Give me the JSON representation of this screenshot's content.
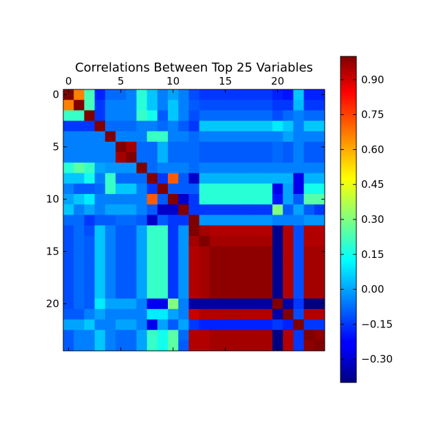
{
  "chart_data": {
    "type": "heatmap",
    "title": "Correlations Between Top 25 Variables",
    "rows": 25,
    "cols": 25,
    "x_ticks": [
      0,
      5,
      10,
      15,
      20
    ],
    "y_ticks": [
      0,
      5,
      10,
      15,
      20
    ],
    "x_tick_labels": [
      "0",
      "5",
      "10",
      "15",
      "20"
    ],
    "y_tick_labels": [
      "0",
      "5",
      "10",
      "15",
      "20"
    ],
    "colormap": "jet",
    "vmin": -0.4,
    "vmax": 1.0,
    "colorbar_ticks": [
      0.9,
      0.75,
      0.6,
      0.45,
      0.3,
      0.15,
      0.0,
      -0.15,
      -0.3
    ],
    "colorbar_tick_labels": [
      "0.90",
      "0.75",
      "0.60",
      "0.45",
      "0.30",
      "0.15",
      "0.00",
      "−0.15",
      "−0.30"
    ],
    "matrix": [
      [
        1.0,
        0.65,
        0.22,
        -0.18,
        -0.08,
        -0.08,
        -0.05,
        0.18,
        0.05,
        -0.05,
        0.0,
        -0.05,
        -0.12,
        -0.15,
        -0.15,
        -0.15,
        -0.15,
        -0.15,
        -0.15,
        -0.15,
        -0.18,
        -0.2,
        0.05,
        -0.18,
        -0.18
      ],
      [
        0.65,
        1.0,
        0.22,
        -0.15,
        -0.05,
        -0.05,
        -0.05,
        0.18,
        0.05,
        -0.05,
        0.05,
        -0.05,
        -0.1,
        -0.12,
        -0.12,
        -0.12,
        -0.12,
        -0.12,
        -0.12,
        -0.12,
        -0.15,
        -0.15,
        0.03,
        -0.15,
        -0.15
      ],
      [
        0.2,
        0.2,
        1.0,
        -0.15,
        -0.05,
        -0.05,
        -0.05,
        0.2,
        0.15,
        -0.1,
        0.05,
        -0.05,
        -0.12,
        -0.08,
        -0.08,
        -0.08,
        -0.08,
        -0.08,
        -0.08,
        -0.08,
        -0.12,
        -0.08,
        -0.05,
        -0.08,
        -0.08
      ],
      [
        -0.15,
        -0.15,
        -0.15,
        1.0,
        -0.08,
        -0.08,
        -0.08,
        -0.05,
        -0.05,
        -0.08,
        -0.05,
        -0.1,
        -0.15,
        0.05,
        0.05,
        0.05,
        0.05,
        0.05,
        0.05,
        0.05,
        0.1,
        0.05,
        -0.05,
        0.05,
        0.05
      ],
      [
        -0.05,
        -0.05,
        -0.05,
        -0.05,
        1.0,
        -0.05,
        -0.05,
        -0.05,
        0.2,
        0.2,
        -0.05,
        -0.05,
        -0.08,
        -0.05,
        -0.05,
        -0.05,
        -0.05,
        -0.05,
        -0.05,
        -0.05,
        -0.05,
        0.0,
        -0.05,
        -0.05,
        -0.05
      ],
      [
        -0.05,
        -0.05,
        -0.05,
        -0.05,
        -0.05,
        1.0,
        0.95,
        -0.08,
        -0.08,
        0.02,
        -0.08,
        -0.08,
        -0.08,
        -0.1,
        -0.1,
        -0.1,
        -0.1,
        -0.1,
        -0.1,
        -0.1,
        -0.08,
        -0.1,
        -0.05,
        -0.1,
        -0.1
      ],
      [
        -0.05,
        -0.05,
        -0.05,
        -0.05,
        -0.05,
        0.95,
        1.0,
        -0.08,
        -0.08,
        0.02,
        -0.08,
        -0.08,
        -0.08,
        -0.1,
        -0.1,
        -0.1,
        -0.1,
        -0.1,
        -0.1,
        -0.1,
        -0.08,
        -0.1,
        -0.05,
        -0.1,
        -0.1
      ],
      [
        0.18,
        0.25,
        0.2,
        0.0,
        -0.02,
        -0.02,
        -0.02,
        1.0,
        -0.08,
        -0.05,
        -0.05,
        -0.05,
        -0.08,
        -0.05,
        -0.05,
        -0.05,
        -0.05,
        -0.05,
        -0.05,
        -0.05,
        -0.05,
        -0.05,
        -0.05,
        -0.05,
        -0.05
      ],
      [
        0.05,
        0.05,
        0.15,
        -0.05,
        0.2,
        -0.08,
        -0.08,
        -0.08,
        1.0,
        -0.15,
        0.7,
        -0.1,
        -0.3,
        0.02,
        0.02,
        0.02,
        0.02,
        0.02,
        0.02,
        0.02,
        0.02,
        0.02,
        -0.25,
        0.02,
        0.02
      ],
      [
        -0.05,
        -0.1,
        -0.1,
        -0.08,
        0.2,
        0.05,
        0.05,
        -0.05,
        -0.15,
        1.0,
        -0.1,
        -0.1,
        -0.1,
        0.18,
        0.18,
        0.18,
        0.18,
        0.18,
        0.18,
        0.18,
        -0.25,
        0.0,
        -0.25,
        0.15,
        0.15
      ],
      [
        0.0,
        0.05,
        0.1,
        -0.05,
        -0.05,
        -0.05,
        -0.05,
        -0.05,
        0.7,
        -0.1,
        1.0,
        -0.3,
        -0.15,
        0.18,
        0.18,
        0.18,
        0.18,
        0.18,
        0.18,
        0.18,
        -0.2,
        0.0,
        -0.1,
        0.25,
        0.25
      ],
      [
        0.05,
        -0.05,
        0.0,
        -0.05,
        0.0,
        0.0,
        0.0,
        -0.05,
        -0.1,
        -0.3,
        -0.3,
        1.0,
        -0.15,
        -0.15,
        -0.15,
        -0.15,
        -0.15,
        -0.15,
        -0.15,
        -0.15,
        0.3,
        -0.1,
        0.0,
        -0.1,
        -0.15
      ],
      [
        -0.08,
        -0.08,
        -0.15,
        -0.1,
        -0.1,
        -0.08,
        -0.08,
        -0.1,
        -0.3,
        -0.1,
        -0.15,
        -0.15,
        1.0,
        -0.02,
        -0.02,
        -0.02,
        -0.02,
        -0.02,
        -0.02,
        -0.02,
        -0.05,
        -0.05,
        -0.05,
        -0.02,
        -0.02
      ],
      [
        -0.12,
        -0.08,
        -0.12,
        0.05,
        -0.05,
        -0.1,
        -0.1,
        0.0,
        0.2,
        0.2,
        -0.15,
        -0.02,
        1.0,
        0.95,
        0.93,
        0.93,
        0.93,
        0.93,
        0.93,
        0.93,
        -0.38,
        0.93,
        -0.12,
        0.93,
        0.93
      ],
      [
        -0.12,
        -0.08,
        -0.1,
        0.05,
        -0.05,
        -0.1,
        -0.1,
        0.0,
        0.2,
        0.2,
        -0.15,
        -0.02,
        0.95,
        1.0,
        0.95,
        0.95,
        0.95,
        0.95,
        0.95,
        0.95,
        -0.38,
        0.93,
        -0.12,
        0.93,
        0.93
      ],
      [
        -0.12,
        -0.08,
        -0.1,
        0.05,
        -0.05,
        -0.1,
        -0.1,
        0.0,
        0.2,
        0.2,
        -0.15,
        -0.02,
        0.93,
        0.95,
        0.98,
        0.98,
        0.98,
        0.98,
        0.98,
        0.98,
        -0.38,
        0.93,
        -0.12,
        0.95,
        0.95
      ],
      [
        -0.12,
        -0.08,
        -0.1,
        0.05,
        -0.05,
        -0.1,
        -0.1,
        0.0,
        0.2,
        0.2,
        -0.15,
        -0.02,
        0.93,
        0.95,
        0.98,
        0.98,
        0.98,
        0.98,
        0.98,
        0.98,
        -0.38,
        0.93,
        -0.12,
        0.95,
        0.95
      ],
      [
        -0.12,
        -0.08,
        -0.1,
        0.05,
        -0.05,
        -0.1,
        -0.1,
        0.0,
        0.2,
        0.2,
        -0.15,
        -0.02,
        0.93,
        0.95,
        0.98,
        0.98,
        0.98,
        0.98,
        0.98,
        0.98,
        -0.38,
        0.93,
        -0.12,
        0.95,
        0.95
      ],
      [
        -0.12,
        -0.08,
        -0.1,
        0.05,
        -0.05,
        -0.1,
        -0.1,
        0.0,
        0.2,
        0.2,
        -0.15,
        -0.02,
        0.93,
        0.95,
        0.98,
        0.98,
        0.98,
        0.98,
        0.98,
        0.98,
        -0.38,
        0.93,
        -0.12,
        0.95,
        0.95
      ],
      [
        -0.12,
        -0.08,
        -0.1,
        0.05,
        -0.05,
        -0.1,
        -0.1,
        0.0,
        0.2,
        0.2,
        -0.15,
        -0.02,
        0.93,
        0.95,
        0.98,
        0.98,
        0.98,
        0.98,
        0.98,
        0.98,
        -0.38,
        0.93,
        -0.12,
        0.95,
        0.95
      ],
      [
        -0.12,
        -0.08,
        -0.1,
        0.1,
        0.0,
        0.0,
        0.0,
        -0.05,
        -0.25,
        -0.25,
        0.3,
        -0.05,
        -0.35,
        -0.35,
        -0.35,
        -0.35,
        -0.35,
        -0.35,
        -0.35,
        -0.35,
        1.0,
        -0.35,
        -0.15,
        -0.4,
        -0.4
      ],
      [
        -0.1,
        -0.1,
        -0.05,
        0.0,
        -0.05,
        -0.05,
        -0.05,
        -0.05,
        0.1,
        0.1,
        0.0,
        -0.05,
        0.9,
        0.93,
        0.93,
        0.93,
        0.93,
        0.93,
        0.93,
        0.93,
        -0.35,
        1.0,
        -0.12,
        0.93,
        0.93
      ],
      [
        0.0,
        0.0,
        0.05,
        -0.05,
        -0.05,
        0.0,
        0.0,
        -0.05,
        -0.25,
        0.0,
        -0.1,
        0.0,
        -0.15,
        -0.18,
        -0.18,
        -0.18,
        -0.18,
        -0.18,
        -0.18,
        -0.18,
        -0.15,
        -0.18,
        1.0,
        -0.15,
        -0.15
      ],
      [
        -0.1,
        -0.05,
        -0.05,
        0.05,
        -0.05,
        -0.08,
        -0.08,
        0.0,
        0.2,
        0.15,
        0.25,
        -0.08,
        0.93,
        0.93,
        0.95,
        0.95,
        0.95,
        0.95,
        0.95,
        0.95,
        -0.4,
        0.93,
        -0.15,
        1.0,
        0.98
      ],
      [
        -0.1,
        -0.05,
        -0.05,
        0.05,
        -0.05,
        -0.08,
        -0.08,
        0.0,
        0.2,
        0.15,
        0.25,
        -0.1,
        0.93,
        0.93,
        0.95,
        0.95,
        0.95,
        0.95,
        0.95,
        0.95,
        -0.4,
        0.93,
        -0.15,
        0.98,
        1.0
      ]
    ]
  }
}
